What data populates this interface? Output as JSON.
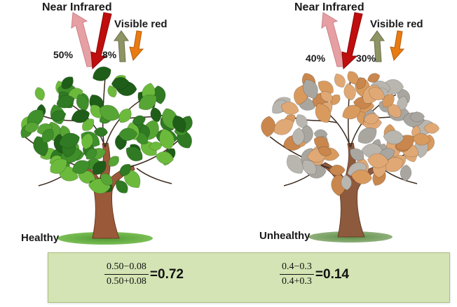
{
  "left_tree": {
    "nir_label": "Near Infrared",
    "red_label": "Visible red",
    "nir_pct": "50%",
    "red_pct": "8%",
    "status": "Healthy",
    "leaf_color": "#3f8f2a",
    "leaf_light": "#6cba3c"
  },
  "right_tree": {
    "nir_label": "Near Infrared",
    "red_label": "Visible red",
    "nir_pct": "40%",
    "red_pct": "30%",
    "status": "Unhealthy",
    "leaf_color": "#d99a5e",
    "leaf_grey": "#b9b6b0"
  },
  "formulas": {
    "left": {
      "numerator": "0.50−0.08",
      "denominator": "0.50+0.08",
      "result": "=0.72"
    },
    "right": {
      "numerator": "0.4−0.3",
      "denominator": "0.4+0.3",
      "result": "=0.14"
    }
  },
  "colors": {
    "nir_reflected": "#e6a0a4",
    "nir_incoming": "#c00d0d",
    "red_reflected": "#8e9463",
    "red_incoming": "#e87b12",
    "trunk": "#9a5a3a",
    "ground": "#6aa84f",
    "formula_bg": "#d4e4b4"
  }
}
